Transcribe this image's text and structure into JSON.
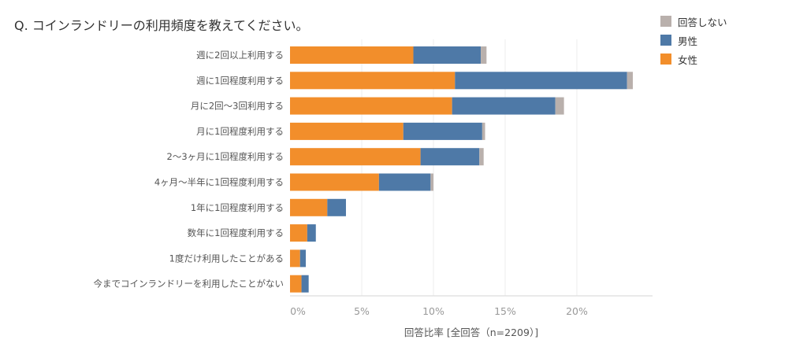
{
  "title": "Q. コインランドリーの利用頻度を教えてください。",
  "colors": {
    "no_answer": "#b9b0ac",
    "male": "#4e79a7",
    "female": "#f28e2b"
  },
  "legend": [
    {
      "label": "回答しない",
      "color": "#b9b0ac"
    },
    {
      "label": "男性",
      "color": "#4e79a7"
    },
    {
      "label": "女性",
      "color": "#f28e2b"
    }
  ],
  "chart_data": {
    "type": "bar",
    "orientation": "horizontal",
    "stacked": true,
    "title": "Q. コインランドリーの利用頻度を教えてください。",
    "xlabel": "回答比率 [全回答（n=2209）]",
    "ylabel": "",
    "xlim": [
      0,
      25
    ],
    "xticks": [
      "0%",
      "5%",
      "10%",
      "15%",
      "20%"
    ],
    "xtick_values": [
      0,
      5,
      10,
      15,
      20
    ],
    "grid": "vertical",
    "legend_position": "top-right",
    "categories": [
      "週に2回以上利用する",
      "週に1回程度利用する",
      "月に2回～3回利用する",
      "月に1回程度利用する",
      "2～3ヶ月に1回程度利用する",
      "4ヶ月～半年に1回程度利用する",
      "1年に1回程度利用する",
      "数年に1回程度利用する",
      "1度だけ利用したことがある",
      "今までコインランドリーを利用したことがない"
    ],
    "series": [
      {
        "name": "女性",
        "color": "#f28e2b",
        "values": [
          8.6,
          11.5,
          11.3,
          7.9,
          9.1,
          6.2,
          2.6,
          1.2,
          0.7,
          0.8
        ]
      },
      {
        "name": "男性",
        "color": "#4e79a7",
        "values": [
          4.7,
          12.0,
          7.2,
          5.5,
          4.1,
          3.6,
          1.3,
          0.6,
          0.4,
          0.5
        ]
      },
      {
        "name": "回答しない",
        "color": "#b9b0ac",
        "values": [
          0.4,
          0.4,
          0.6,
          0.2,
          0.3,
          0.2,
          0.0,
          0.0,
          0.0,
          0.0
        ]
      }
    ]
  }
}
